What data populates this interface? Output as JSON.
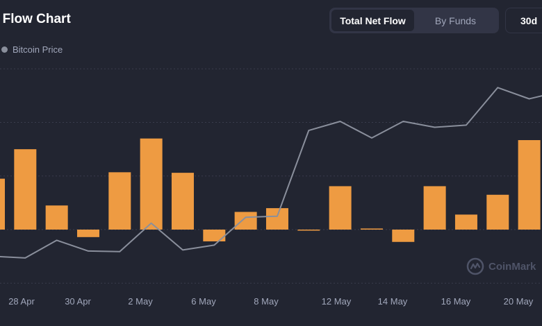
{
  "header": {
    "title": "t Flow Chart",
    "tabs": [
      {
        "label": "Total Net Flow",
        "active": true
      },
      {
        "label": "By Funds",
        "active": false
      }
    ],
    "period_label": "30d"
  },
  "watermark": {
    "text": "CoinMark"
  },
  "colors": {
    "background": "#222531",
    "bar": "#EE9B42",
    "price_line": "#8A8F9C",
    "grid": "#3A3D4D",
    "tick_text": "#A1A7BB"
  },
  "chart_data": {
    "type": "bar",
    "x_axis_tick_labels": [
      "28 Apr",
      "30 Apr",
      "2 May",
      "6 May",
      "8 May",
      "12 May",
      "14 May",
      "16 May",
      "20 May"
    ],
    "series": [
      {
        "name": "",
        "type": "bar",
        "values": [
          95,
          150,
          45,
          -14,
          107,
          170,
          106,
          -22,
          33,
          40,
          0,
          81,
          2,
          -23,
          81,
          28,
          65,
          167,
          83
        ]
      },
      {
        "name": "Bitcoin Price",
        "type": "line",
        "values": [
          -50,
          -53,
          -20,
          -40,
          -41,
          12,
          -38,
          -29,
          23,
          25,
          185,
          202,
          171,
          202,
          191,
          195,
          265,
          244,
          258
        ]
      }
    ],
    "ylim": [
      -100,
      300
    ],
    "grid": true,
    "legend_position": "top-left"
  }
}
